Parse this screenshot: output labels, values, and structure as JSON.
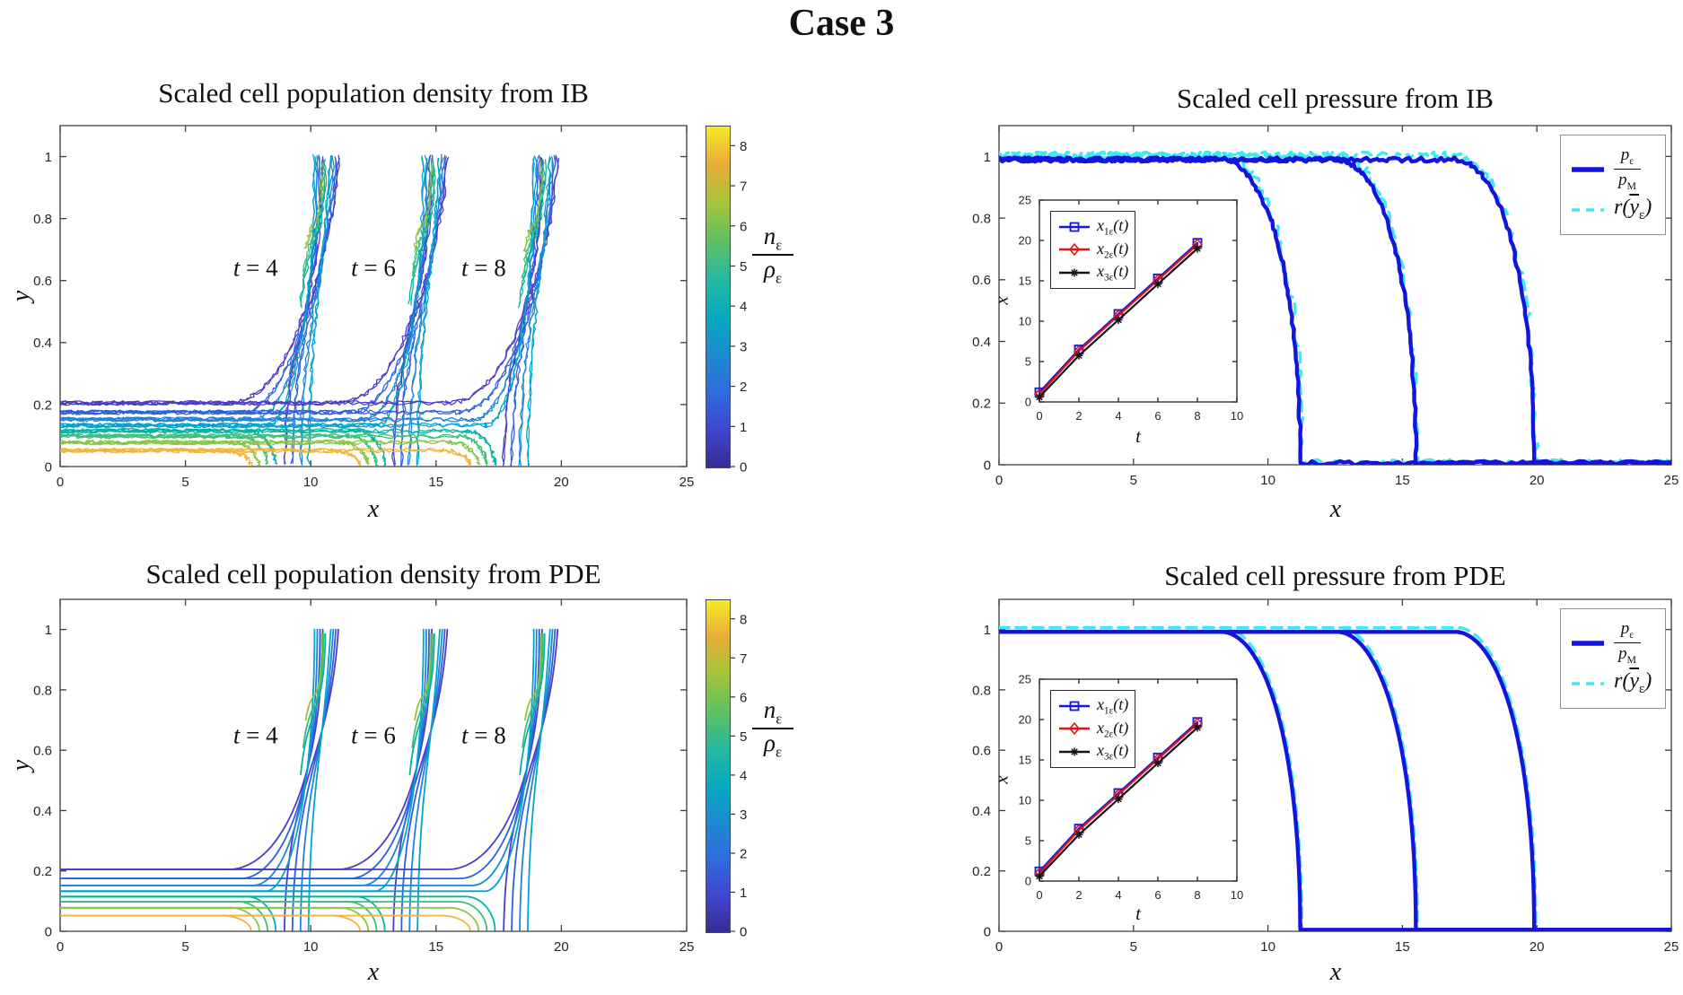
{
  "page_title": "Case 3",
  "colors": {
    "blue": "#1414dd",
    "cyan": "#3fe9f2",
    "red": "#e01414",
    "black": "#141414",
    "axis": "#3c3c3c",
    "parula_stops": [
      "#362c95",
      "#4046cf",
      "#2f6de0",
      "#1d8bd1",
      "#07a9bf",
      "#27b99e",
      "#5fc15f",
      "#a5c43a",
      "#e9ac38",
      "#f6e926"
    ]
  },
  "chart_data": [
    {
      "id": "density_ib",
      "type": "line",
      "title": "Scaled cell population density from IB",
      "xlabel": "x",
      "ylabel": "y",
      "xlim": [
        0,
        25
      ],
      "ylim": [
        0,
        1.1
      ],
      "xticks": [
        0,
        5,
        10,
        15,
        20,
        25
      ],
      "yticks": [
        0,
        0.2,
        0.4,
        0.6,
        0.8,
        1
      ],
      "grid": false,
      "noisy": true,
      "time_labels": [
        {
          "html": "<i>t</i> = 4",
          "x": 7.8,
          "y": 0.64
        },
        {
          "html": "<i>t</i> = 6",
          "x": 12.5,
          "y": 0.64
        },
        {
          "html": "<i>t</i> = 8",
          "x": 16.9,
          "y": 0.64
        }
      ],
      "front_tips_x": [
        11.1,
        15.45,
        19.85
      ],
      "contour_levels": [
        {
          "value": 0,
          "y": 0.205,
          "color": "#4a3cc7",
          "behavior": "rise"
        },
        {
          "value": 1,
          "y": 0.175,
          "color": "#2d5fe0",
          "behavior": "rise"
        },
        {
          "value": 2,
          "y": 0.152,
          "color": "#1f84d8",
          "behavior": "rise"
        },
        {
          "value": 3,
          "y": 0.133,
          "color": "#02a3cc",
          "behavior": "rise"
        },
        {
          "value": 4,
          "y": 0.115,
          "color": "#06b3a2",
          "behavior": "drop"
        },
        {
          "value": 5,
          "y": 0.098,
          "color": "#3fbe78",
          "behavior": "drop"
        },
        {
          "value": 6,
          "y": 0.078,
          "color": "#8ac543",
          "behavior": "drop"
        },
        {
          "value": 7,
          "y": 0.052,
          "color": "#f2b43c",
          "behavior": "drop"
        }
      ],
      "colorbar": {
        "min": 0,
        "max": 8.5,
        "ticks": [
          0,
          1,
          2,
          3,
          4,
          5,
          6,
          7,
          8
        ],
        "label_num": "<i>n</i><sub>ε</sub>",
        "label_den": "<i>ρ</i><sub>ε</sub>"
      }
    },
    {
      "id": "pressure_ib",
      "type": "line",
      "title": "Scaled cell pressure from IB",
      "xlabel": "x",
      "xlim": [
        0,
        25
      ],
      "ylim": [
        0,
        1.1
      ],
      "xticks": [
        0,
        5,
        10,
        15,
        20,
        25
      ],
      "yticks": [
        0,
        0.2,
        0.4,
        0.6,
        0.8,
        1
      ],
      "grid": false,
      "noisy": true,
      "fronts_x": [
        11.2,
        15.5,
        19.9
      ],
      "series": [
        {
          "name": "p_eps / p_M",
          "color": "#1414dd",
          "line": "solid",
          "flat_y": 0.99
        },
        {
          "name": "r(y_eps)",
          "color": "#3fe9f2",
          "line": "dashed",
          "flat_y": 1.003
        }
      ],
      "legend": {
        "row1_num": "<i>p</i><sub>ε</sub>",
        "row1_den": "<i>p</i><sub>M</sub>",
        "row2": "<i>r</i>(<u><i>y</i></u><sub>ε</sub>)"
      },
      "inset": {
        "xlabel": "t",
        "ylabel": "x",
        "xlim": [
          0,
          10
        ],
        "ylim": [
          0,
          25
        ],
        "xticks": [
          0,
          2,
          4,
          6,
          8,
          10
        ],
        "yticks": [
          0,
          5,
          10,
          15,
          20,
          25
        ],
        "t": [
          0,
          2,
          4,
          6,
          8
        ],
        "series": [
          {
            "label_html": "<i>x</i><sub>1ε</sub>(<i>t</i>)",
            "color": "#1414dd",
            "marker": "square",
            "values": [
              1.2,
              6.5,
              10.9,
              15.3,
              19.7
            ]
          },
          {
            "label_html": "<i>x</i><sub>2ε</sub>(<i>t</i>)",
            "color": "#e01414",
            "marker": "diamond",
            "values": [
              0.95,
              6.3,
              10.7,
              15.1,
              19.5
            ]
          },
          {
            "label_html": "<i>x</i><sub>3ε</sub>(<i>t</i>)",
            "color": "#141414",
            "marker": "asterisk",
            "values": [
              0.6,
              5.75,
              10.15,
              14.6,
              19.0
            ]
          }
        ]
      }
    },
    {
      "id": "density_pde",
      "type": "line",
      "title": "Scaled cell population density from PDE",
      "xlabel": "x",
      "ylabel": "y",
      "xlim": [
        0,
        25
      ],
      "ylim": [
        0,
        1.1
      ],
      "xticks": [
        0,
        5,
        10,
        15,
        20,
        25
      ],
      "yticks": [
        0,
        0.2,
        0.4,
        0.6,
        0.8,
        1
      ],
      "grid": false,
      "noisy": false,
      "time_labels": [
        {
          "html": "<i>t</i> = 4",
          "x": 7.8,
          "y": 0.648
        },
        {
          "html": "<i>t</i> = 6",
          "x": 12.5,
          "y": 0.648
        },
        {
          "html": "<i>t</i> = 8",
          "x": 16.9,
          "y": 0.648
        }
      ],
      "front_tips_x": [
        11.1,
        15.45,
        19.85
      ],
      "contour_levels": [
        {
          "value": 0,
          "y": 0.205,
          "color": "#4a3cc7",
          "behavior": "rise"
        },
        {
          "value": 1,
          "y": 0.175,
          "color": "#2d5fe0",
          "behavior": "rise"
        },
        {
          "value": 2,
          "y": 0.152,
          "color": "#1f84d8",
          "behavior": "rise"
        },
        {
          "value": 3,
          "y": 0.133,
          "color": "#02a3cc",
          "behavior": "rise"
        },
        {
          "value": 4,
          "y": 0.115,
          "color": "#06b3a2",
          "behavior": "drop"
        },
        {
          "value": 5,
          "y": 0.098,
          "color": "#3fbe78",
          "behavior": "drop"
        },
        {
          "value": 6,
          "y": 0.078,
          "color": "#8ac543",
          "behavior": "drop"
        },
        {
          "value": 7,
          "y": 0.052,
          "color": "#f2b43c",
          "behavior": "drop"
        }
      ],
      "colorbar": {
        "min": 0,
        "max": 8.5,
        "ticks": [
          0,
          1,
          2,
          3,
          4,
          5,
          6,
          7,
          8
        ],
        "label_num": "<i>n</i><sub>ε</sub>",
        "label_den": "<i>ρ</i><sub>ε</sub>"
      }
    },
    {
      "id": "pressure_pde",
      "type": "line",
      "title": "Scaled cell pressure from PDE",
      "xlabel": "x",
      "xlim": [
        0,
        25
      ],
      "ylim": [
        0,
        1.1
      ],
      "xticks": [
        0,
        5,
        10,
        15,
        20,
        25
      ],
      "yticks": [
        0,
        0.2,
        0.4,
        0.6,
        0.8,
        1
      ],
      "grid": false,
      "noisy": false,
      "fronts_x": [
        11.2,
        15.5,
        19.9
      ],
      "series": [
        {
          "name": "p_eps / p_M",
          "color": "#1414dd",
          "line": "solid",
          "flat_y": 0.992
        },
        {
          "name": "r(y_eps)",
          "color": "#3fe9f2",
          "line": "dashed",
          "flat_y": 1.006
        }
      ],
      "legend": {
        "row1_num": "<i>p</i><sub>ε</sub>",
        "row1_den": "<i>p</i><sub>M</sub>",
        "row2": "<i>r</i>(<u><i>y</i></u><sub>ε</sub>)"
      },
      "inset": {
        "xlabel": "t",
        "ylabel": "x",
        "xlim": [
          0,
          10
        ],
        "ylim": [
          0,
          25
        ],
        "xticks": [
          0,
          2,
          4,
          6,
          8,
          10
        ],
        "yticks": [
          0,
          5,
          10,
          15,
          20,
          25
        ],
        "t": [
          0,
          2,
          4,
          6,
          8
        ],
        "series": [
          {
            "label_html": "<i>x</i><sub>1ε</sub>(<i>t</i>)",
            "color": "#1414dd",
            "marker": "square",
            "values": [
              1.2,
              6.5,
              10.9,
              15.3,
              19.7
            ]
          },
          {
            "label_html": "<i>x</i><sub>2ε</sub>(<i>t</i>)",
            "color": "#e01414",
            "marker": "diamond",
            "values": [
              0.95,
              6.3,
              10.7,
              15.1,
              19.5
            ]
          },
          {
            "label_html": "<i>x</i><sub>3ε</sub>(<i>t</i>)",
            "color": "#141414",
            "marker": "asterisk",
            "values": [
              0.6,
              5.75,
              10.15,
              14.6,
              19.0
            ]
          }
        ]
      }
    }
  ]
}
